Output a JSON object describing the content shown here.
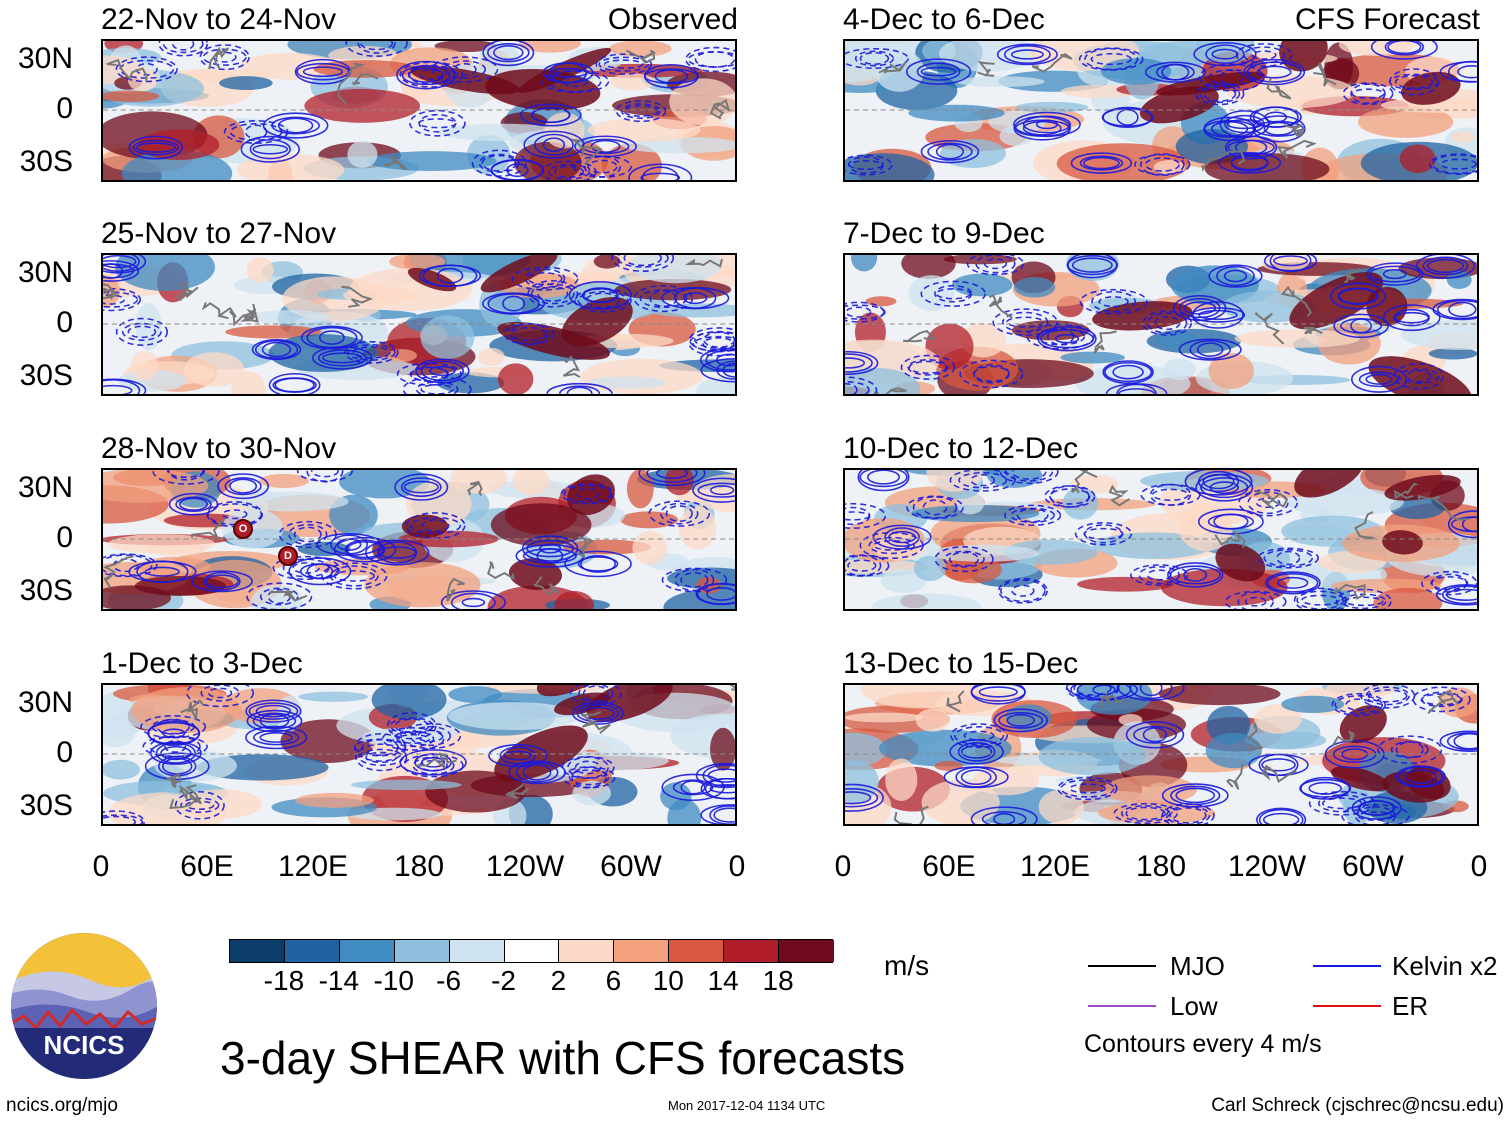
{
  "panels_observed": [
    {
      "title": "22-Nov to 24-Nov",
      "label": "Observed"
    },
    {
      "title": "25-Nov to 27-Nov",
      "label": ""
    },
    {
      "title": "28-Nov to 30-Nov",
      "label": ""
    },
    {
      "title": "1-Dec to 3-Dec",
      "label": ""
    }
  ],
  "panels_forecast": [
    {
      "title": "4-Dec to 6-Dec",
      "label": "CFS Forecast"
    },
    {
      "title": "7-Dec to 9-Dec",
      "label": ""
    },
    {
      "title": "10-Dec to 12-Dec",
      "label": ""
    },
    {
      "title": "13-Dec to 15-Dec",
      "label": ""
    }
  ],
  "lat_labels": [
    "30N",
    "0",
    "30S"
  ],
  "lon_labels": [
    "0",
    "60E",
    "120E",
    "180",
    "120W",
    "60W",
    "0"
  ],
  "colorbar": {
    "colors": [
      "#0b3d6b",
      "#1f63a3",
      "#3f8bc2",
      "#8ec0dd",
      "#cfe3ef",
      "#ffffff",
      "#fcd9c6",
      "#f2a07e",
      "#d8583f",
      "#b01d28",
      "#6e0a1b"
    ],
    "labels": [
      "-18",
      "-14",
      "-10",
      "-6",
      "-2",
      "2",
      "6",
      "10",
      "14",
      "18"
    ],
    "units": "m/s"
  },
  "legend": {
    "items": [
      {
        "label": "MJO",
        "color": "#000000"
      },
      {
        "label": "Kelvin x2",
        "color": "#1a1adc"
      },
      {
        "label": "Low",
        "color": "#a04cc8"
      },
      {
        "label": "ER",
        "color": "#e01010"
      }
    ],
    "note": "Contours every 4 m/s"
  },
  "storm_marks": [
    "O",
    "D"
  ],
  "logo": {
    "text": "NCICS"
  },
  "main_title": "3-day SHEAR with CFS forecasts",
  "footer": {
    "left": "ncics.org/mjo",
    "center": "Mon 2017-12-04 1134 UTC",
    "right": "Carl Schreck (cjschrec@ncsu.edu)"
  }
}
